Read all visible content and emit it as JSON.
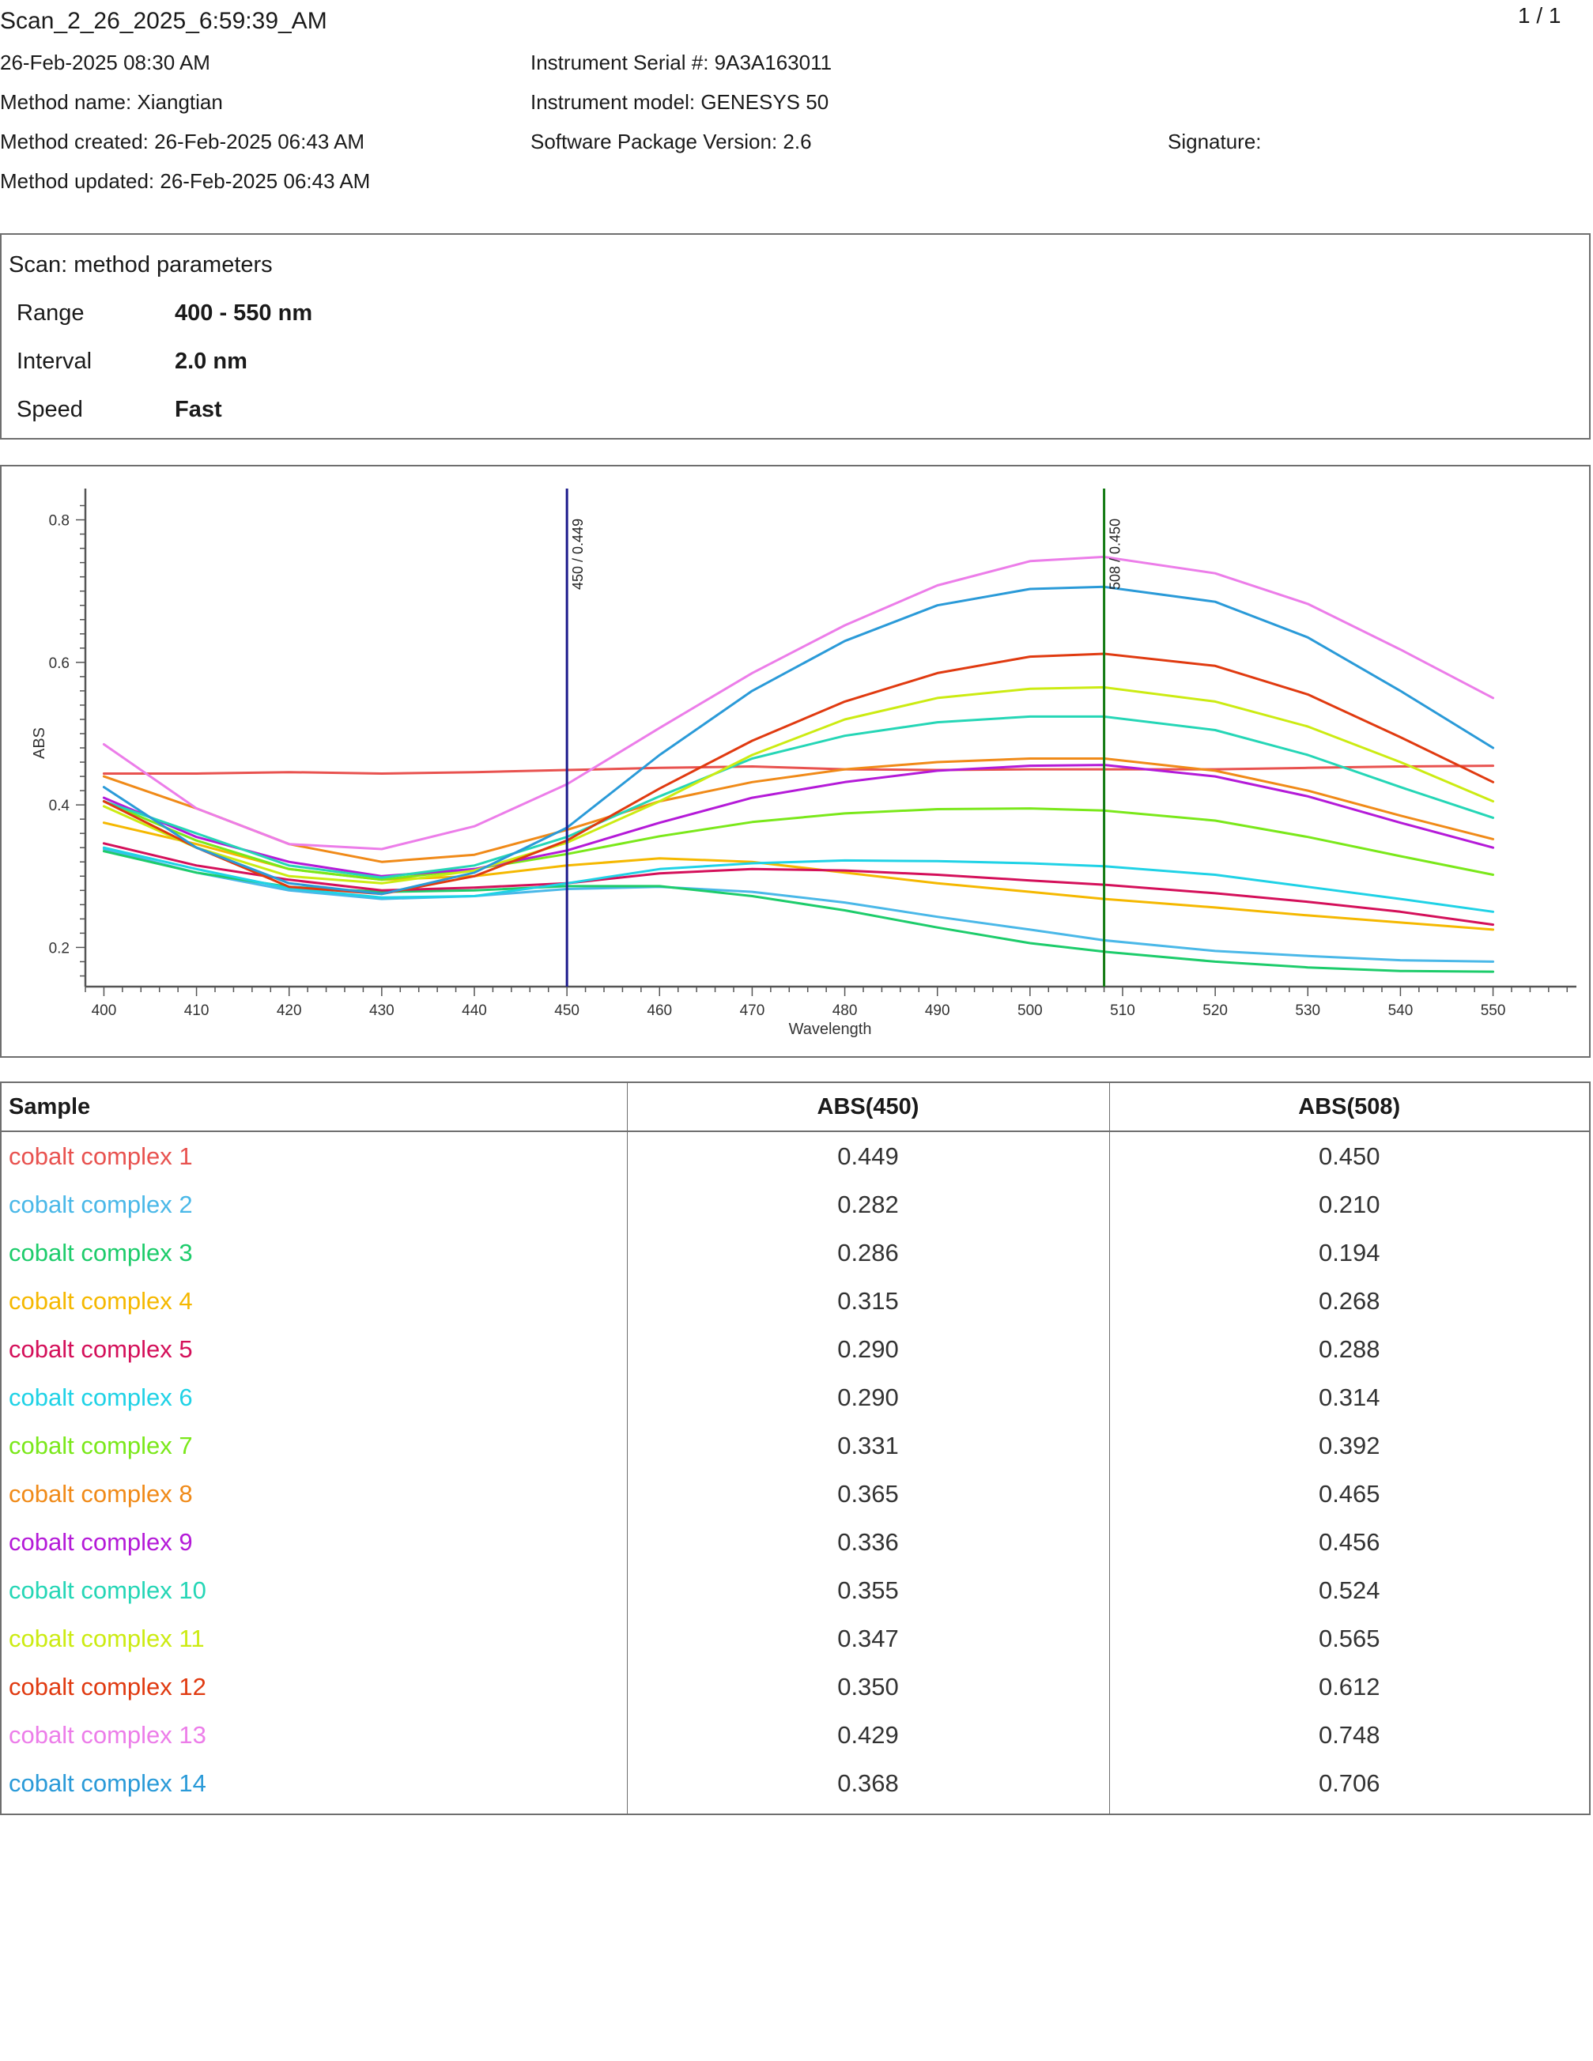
{
  "header": {
    "title": "Scan_2_26_2025_6:59:39_AM",
    "page": "1 / 1",
    "date": "26-Feb-2025 08:30 AM",
    "method_name": "Method name: Xiangtian",
    "method_created": "Method created: 26-Feb-2025 06:43 AM",
    "method_updated": "Method updated: 26-Feb-2025 06:43 AM",
    "serial": "Instrument Serial #: 9A3A163011",
    "model": "Instrument model: GENESYS 50",
    "software": "Software Package Version: 2.6",
    "signature": "Signature:"
  },
  "params": {
    "title": "Scan: method parameters",
    "rows": [
      {
        "label": "Range",
        "value": "400 - 550 nm"
      },
      {
        "label": "Interval",
        "value": "2.0 nm"
      },
      {
        "label": "Speed",
        "value": "Fast"
      }
    ]
  },
  "chart_data": {
    "type": "line",
    "xlabel": "Wavelength",
    "ylabel": "ABS",
    "xlim": [
      398,
      559
    ],
    "ylim": [
      0.145,
      0.835
    ],
    "xticks": [
      400,
      410,
      420,
      430,
      440,
      450,
      460,
      470,
      480,
      490,
      500,
      510,
      520,
      530,
      540,
      550
    ],
    "yticks": [
      0.2,
      0.4,
      0.6,
      0.8
    ],
    "markers": [
      {
        "x": 450,
        "label": "450 / 0.449",
        "color": "#1c1a8c"
      },
      {
        "x": 508,
        "label": "508 / 0.450",
        "color": "#137a13"
      }
    ],
    "x": [
      400,
      410,
      420,
      430,
      440,
      450,
      460,
      470,
      480,
      490,
      500,
      508,
      520,
      530,
      540,
      550
    ],
    "series": [
      {
        "name": "cobalt complex 1",
        "color": "#e8524f",
        "values": [
          0.444,
          0.444,
          0.446,
          0.444,
          0.446,
          0.449,
          0.452,
          0.454,
          0.45,
          0.449,
          0.45,
          0.45,
          0.45,
          0.452,
          0.454,
          0.455
        ]
      },
      {
        "name": "cobalt complex 2",
        "color": "#4ab8e8",
        "values": [
          0.338,
          0.305,
          0.28,
          0.268,
          0.272,
          0.282,
          0.285,
          0.278,
          0.263,
          0.243,
          0.225,
          0.21,
          0.195,
          0.188,
          0.182,
          0.18
        ]
      },
      {
        "name": "cobalt complex 3",
        "color": "#1dcc6b",
        "values": [
          0.335,
          0.305,
          0.285,
          0.278,
          0.28,
          0.286,
          0.286,
          0.272,
          0.252,
          0.228,
          0.206,
          0.194,
          0.18,
          0.172,
          0.167,
          0.166
        ]
      },
      {
        "name": "cobalt complex 4",
        "color": "#f5b800",
        "values": [
          0.375,
          0.345,
          0.31,
          0.295,
          0.3,
          0.315,
          0.325,
          0.32,
          0.305,
          0.29,
          0.278,
          0.268,
          0.256,
          0.245,
          0.235,
          0.225
        ]
      },
      {
        "name": "cobalt complex 5",
        "color": "#d4105a",
        "values": [
          0.346,
          0.315,
          0.295,
          0.28,
          0.284,
          0.29,
          0.304,
          0.31,
          0.308,
          0.302,
          0.294,
          0.288,
          0.276,
          0.264,
          0.25,
          0.232
        ]
      },
      {
        "name": "cobalt complex 6",
        "color": "#1fd2e6",
        "values": [
          0.34,
          0.31,
          0.283,
          0.27,
          0.272,
          0.29,
          0.31,
          0.318,
          0.322,
          0.321,
          0.318,
          0.314,
          0.302,
          0.285,
          0.268,
          0.25
        ]
      },
      {
        "name": "cobalt complex 7",
        "color": "#7ae81a",
        "values": [
          0.405,
          0.35,
          0.31,
          0.295,
          0.31,
          0.331,
          0.356,
          0.376,
          0.388,
          0.394,
          0.395,
          0.392,
          0.378,
          0.355,
          0.328,
          0.302
        ]
      },
      {
        "name": "cobalt complex 8",
        "color": "#f08a18",
        "values": [
          0.44,
          0.395,
          0.345,
          0.32,
          0.33,
          0.365,
          0.405,
          0.432,
          0.45,
          0.46,
          0.465,
          0.465,
          0.448,
          0.42,
          0.385,
          0.352
        ]
      },
      {
        "name": "cobalt complex 9",
        "color": "#b41ad8",
        "values": [
          0.41,
          0.355,
          0.32,
          0.3,
          0.31,
          0.336,
          0.375,
          0.41,
          0.432,
          0.448,
          0.455,
          0.456,
          0.44,
          0.412,
          0.375,
          0.34
        ]
      },
      {
        "name": "cobalt complex 10",
        "color": "#25d6b6",
        "values": [
          0.405,
          0.36,
          0.315,
          0.298,
          0.315,
          0.355,
          0.412,
          0.465,
          0.497,
          0.516,
          0.524,
          0.524,
          0.505,
          0.47,
          0.425,
          0.382
        ]
      },
      {
        "name": "cobalt complex 11",
        "color": "#cceb12",
        "values": [
          0.398,
          0.34,
          0.3,
          0.29,
          0.308,
          0.347,
          0.405,
          0.47,
          0.52,
          0.55,
          0.563,
          0.565,
          0.545,
          0.51,
          0.46,
          0.405
        ]
      },
      {
        "name": "cobalt complex 12",
        "color": "#e03a10",
        "values": [
          0.405,
          0.34,
          0.285,
          0.275,
          0.3,
          0.35,
          0.423,
          0.49,
          0.545,
          0.585,
          0.608,
          0.612,
          0.595,
          0.555,
          0.495,
          0.432
        ]
      },
      {
        "name": "cobalt complex 13",
        "color": "#ec7de9",
        "values": [
          0.485,
          0.395,
          0.345,
          0.338,
          0.37,
          0.429,
          0.508,
          0.585,
          0.652,
          0.708,
          0.742,
          0.748,
          0.725,
          0.682,
          0.618,
          0.55
        ]
      },
      {
        "name": "cobalt complex 14",
        "color": "#2a9ad8",
        "values": [
          0.425,
          0.34,
          0.29,
          0.275,
          0.305,
          0.368,
          0.47,
          0.56,
          0.63,
          0.68,
          0.703,
          0.706,
          0.685,
          0.635,
          0.56,
          0.48
        ]
      }
    ]
  },
  "table": {
    "headers": [
      "Sample",
      "ABS(450)",
      "ABS(508)"
    ],
    "rows": [
      {
        "sample": "cobalt complex 1",
        "abs450": "0.449",
        "abs508": "0.450"
      },
      {
        "sample": "cobalt complex 2",
        "abs450": "0.282",
        "abs508": "0.210"
      },
      {
        "sample": "cobalt complex 3",
        "abs450": "0.286",
        "abs508": "0.194"
      },
      {
        "sample": "cobalt complex 4",
        "abs450": "0.315",
        "abs508": "0.268"
      },
      {
        "sample": "cobalt complex 5",
        "abs450": "0.290",
        "abs508": "0.288"
      },
      {
        "sample": "cobalt complex 6",
        "abs450": "0.290",
        "abs508": "0.314"
      },
      {
        "sample": "cobalt complex 7",
        "abs450": "0.331",
        "abs508": "0.392"
      },
      {
        "sample": "cobalt complex 8",
        "abs450": "0.365",
        "abs508": "0.465"
      },
      {
        "sample": "cobalt complex 9",
        "abs450": "0.336",
        "abs508": "0.456"
      },
      {
        "sample": "cobalt complex 10",
        "abs450": "0.355",
        "abs508": "0.524"
      },
      {
        "sample": "cobalt complex 11",
        "abs450": "0.347",
        "abs508": "0.565"
      },
      {
        "sample": "cobalt complex 12",
        "abs450": "0.350",
        "abs508": "0.612"
      },
      {
        "sample": "cobalt complex 13",
        "abs450": "0.429",
        "abs508": "0.748"
      },
      {
        "sample": "cobalt complex 14",
        "abs450": "0.368",
        "abs508": "0.706"
      }
    ]
  }
}
